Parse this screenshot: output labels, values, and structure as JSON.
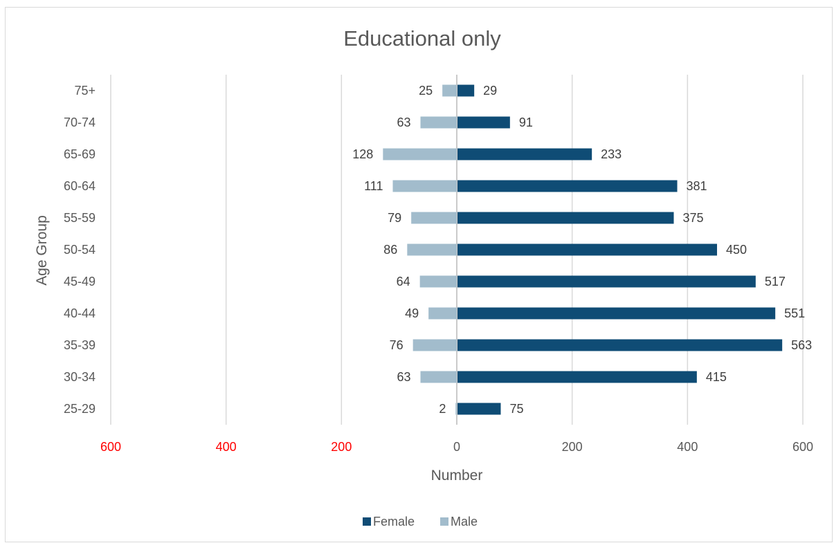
{
  "chart_data": {
    "type": "bar",
    "orientation": "horizontal",
    "layout": "population-pyramid",
    "title": "Educational only",
    "xlabel": "Number",
    "ylabel": "Age Group",
    "categories": [
      "25-29",
      "30-34",
      "35-39",
      "40-44",
      "45-49",
      "50-54",
      "55-59",
      "60-64",
      "65-69",
      "70-74",
      "75+"
    ],
    "series": [
      {
        "name": "Female",
        "color": "#0f4c75",
        "side": "right",
        "values": [
          75,
          415,
          563,
          551,
          517,
          450,
          375,
          381,
          233,
          91,
          29
        ]
      },
      {
        "name": "Male",
        "color": "#a2bccc",
        "side": "left",
        "values": [
          2,
          63,
          76,
          49,
          64,
          86,
          79,
          111,
          128,
          63,
          25
        ]
      }
    ],
    "xlim": [
      -600,
      600
    ],
    "xticks": [
      {
        "value": -600,
        "label": "600",
        "color": "#ff0000"
      },
      {
        "value": -400,
        "label": "400",
        "color": "#ff0000"
      },
      {
        "value": -200,
        "label": "200",
        "color": "#ff0000"
      },
      {
        "value": 0,
        "label": "0",
        "color": "#595959"
      },
      {
        "value": 200,
        "label": "200",
        "color": "#595959"
      },
      {
        "value": 400,
        "label": "400",
        "color": "#595959"
      },
      {
        "value": 600,
        "label": "600",
        "color": "#595959"
      }
    ],
    "grid": true,
    "legend_position": "bottom",
    "data_labels": true
  }
}
